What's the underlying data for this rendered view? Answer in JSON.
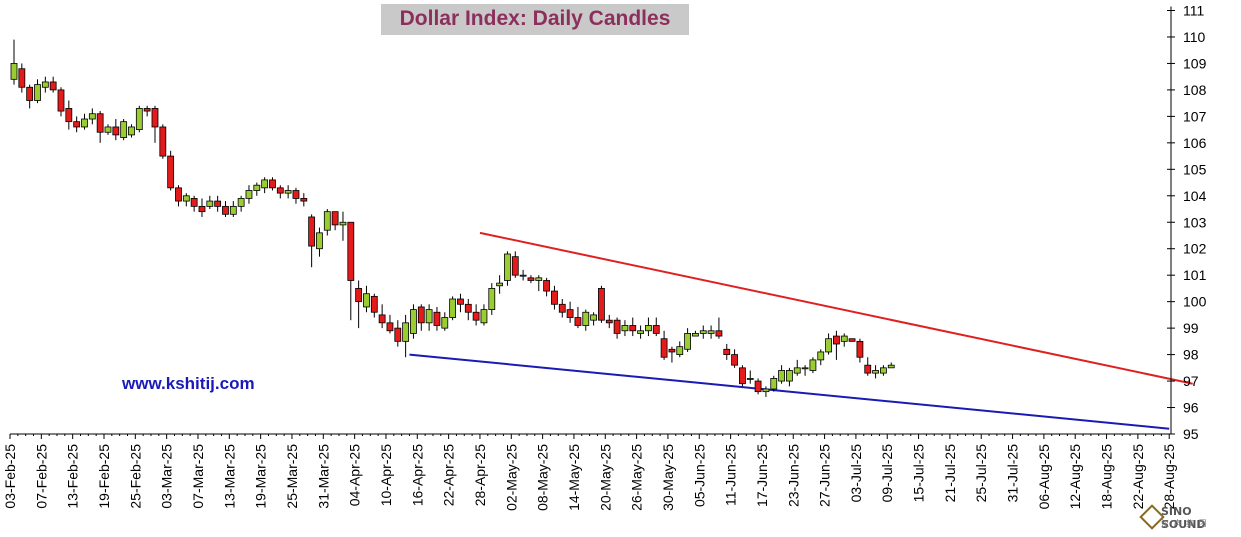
{
  "title": "Dollar Index: Daily Candles",
  "website": "www.kshitij.com",
  "logo_text": "SINO SOUND",
  "logo_subtext": "汉 声 集 团",
  "colors": {
    "up_candle": "#9acd32",
    "down_candle": "#e31b1b",
    "resistance_line": "#e02020",
    "support_line": "#1a1ab4",
    "title_bg": "#c9c9c9",
    "title_text": "#8c2f5c",
    "website_text": "#1a1ab8"
  },
  "chart_data": {
    "type": "candlestick",
    "title": "Dollar Index: Daily Candles",
    "ylim": [
      95,
      111
    ],
    "y_ticks": [
      95,
      96,
      97,
      98,
      99,
      100,
      101,
      102,
      103,
      104,
      105,
      106,
      107,
      108,
      109,
      110,
      111
    ],
    "y_axis_side": "right",
    "grid": false,
    "x_tick_labels": [
      "03-Feb-25",
      "07-Feb-25",
      "13-Feb-25",
      "19-Feb-25",
      "25-Feb-25",
      "03-Mar-25",
      "07-Mar-25",
      "13-Mar-25",
      "19-Mar-25",
      "25-Mar-25",
      "31-Mar-25",
      "04-Apr-25",
      "10-Apr-25",
      "16-Apr-25",
      "22-Apr-25",
      "28-Apr-25",
      "02-May-25",
      "08-May-25",
      "14-May-25",
      "20-May-25",
      "26-May-25",
      "30-May-25",
      "05-Jun-25",
      "11-Jun-25",
      "17-Jun-25",
      "23-Jun-25",
      "27-Jun-25",
      "03-Jul-25",
      "09-Jul-25",
      "15-Jul-25",
      "21-Jul-25",
      "25-Jul-25",
      "31-Jul-25",
      "06-Aug-25",
      "12-Aug-25",
      "18-Aug-25",
      "22-Aug-25",
      "28-Aug-25"
    ],
    "candles_ohlc": [
      [
        108.4,
        109.9,
        108.2,
        109.0
      ],
      [
        108.8,
        109.0,
        107.9,
        108.1
      ],
      [
        108.1,
        108.2,
        107.3,
        107.6
      ],
      [
        107.6,
        108.4,
        107.5,
        108.2
      ],
      [
        108.1,
        108.5,
        107.9,
        108.3
      ],
      [
        108.3,
        108.5,
        107.9,
        108.0
      ],
      [
        108.0,
        108.1,
        107.0,
        107.2
      ],
      [
        107.3,
        107.6,
        106.5,
        106.8
      ],
      [
        106.8,
        107.0,
        106.4,
        106.6
      ],
      [
        106.6,
        107.1,
        106.5,
        106.9
      ],
      [
        106.9,
        107.3,
        106.7,
        107.1
      ],
      [
        107.1,
        107.2,
        106.0,
        106.4
      ],
      [
        106.4,
        106.7,
        106.3,
        106.6
      ],
      [
        106.6,
        106.9,
        106.1,
        106.3
      ],
      [
        106.2,
        106.9,
        106.1,
        106.8
      ],
      [
        106.3,
        106.7,
        106.2,
        106.6
      ],
      [
        106.5,
        107.4,
        106.4,
        107.3
      ],
      [
        107.3,
        107.4,
        107.0,
        107.2
      ],
      [
        107.3,
        107.4,
        106.0,
        106.6
      ],
      [
        106.6,
        106.7,
        105.4,
        105.5
      ],
      [
        105.5,
        105.7,
        104.2,
        104.3
      ],
      [
        104.3,
        104.4,
        103.6,
        103.8
      ],
      [
        103.8,
        104.1,
        103.6,
        104.0
      ],
      [
        103.9,
        104.0,
        103.4,
        103.6
      ],
      [
        103.6,
        103.9,
        103.2,
        103.4
      ],
      [
        103.6,
        104.0,
        103.5,
        103.8
      ],
      [
        103.8,
        104.0,
        103.4,
        103.6
      ],
      [
        103.6,
        103.8,
        103.2,
        103.3
      ],
      [
        103.3,
        103.8,
        103.2,
        103.6
      ],
      [
        103.6,
        104.0,
        103.4,
        103.9
      ],
      [
        103.9,
        104.4,
        103.7,
        104.2
      ],
      [
        104.2,
        104.5,
        104.0,
        104.4
      ],
      [
        104.3,
        104.7,
        104.1,
        104.6
      ],
      [
        104.6,
        104.7,
        104.2,
        104.3
      ],
      [
        104.3,
        104.4,
        103.9,
        104.1
      ],
      [
        104.1,
        104.4,
        103.9,
        104.2
      ],
      [
        104.2,
        104.3,
        103.7,
        103.9
      ],
      [
        103.9,
        104.1,
        103.6,
        103.8
      ],
      [
        103.2,
        103.3,
        101.3,
        102.1
      ],
      [
        102.0,
        102.8,
        101.7,
        102.6
      ],
      [
        102.7,
        103.5,
        102.5,
        103.4
      ],
      [
        103.4,
        103.4,
        102.7,
        102.9
      ],
      [
        102.9,
        103.4,
        102.3,
        103.0
      ],
      [
        103.0,
        103.0,
        99.3,
        100.8
      ],
      [
        100.5,
        100.8,
        99.0,
        100.0
      ],
      [
        99.8,
        100.6,
        99.6,
        100.3
      ],
      [
        100.2,
        100.3,
        99.4,
        99.6
      ],
      [
        99.5,
        99.9,
        99.0,
        99.2
      ],
      [
        99.2,
        99.5,
        98.8,
        98.9
      ],
      [
        99.0,
        99.3,
        98.3,
        98.5
      ],
      [
        98.5,
        99.5,
        97.9,
        99.2
      ],
      [
        98.8,
        99.9,
        98.6,
        99.7
      ],
      [
        99.8,
        99.9,
        98.9,
        99.2
      ],
      [
        99.2,
        99.9,
        98.9,
        99.7
      ],
      [
        99.6,
        99.8,
        98.9,
        99.1
      ],
      [
        99.0,
        99.6,
        98.9,
        99.4
      ],
      [
        99.4,
        100.2,
        99.3,
        100.1
      ],
      [
        100.1,
        100.3,
        99.6,
        99.9
      ],
      [
        99.9,
        100.1,
        99.3,
        99.6
      ],
      [
        99.6,
        99.9,
        99.1,
        99.3
      ],
      [
        99.2,
        99.9,
        99.1,
        99.7
      ],
      [
        99.7,
        100.7,
        99.5,
        100.5
      ],
      [
        100.6,
        101.0,
        100.3,
        100.7
      ],
      [
        100.8,
        101.9,
        100.6,
        101.8
      ],
      [
        101.7,
        101.9,
        100.9,
        101.0
      ],
      [
        101.0,
        101.2,
        100.8,
        101.0
      ],
      [
        100.9,
        101.0,
        100.7,
        100.8
      ],
      [
        100.8,
        101.0,
        100.4,
        100.9
      ],
      [
        100.8,
        100.9,
        100.2,
        100.4
      ],
      [
        100.4,
        100.6,
        99.7,
        99.9
      ],
      [
        99.9,
        100.1,
        99.4,
        99.6
      ],
      [
        99.7,
        100.0,
        99.2,
        99.4
      ],
      [
        99.4,
        99.8,
        99.0,
        99.1
      ],
      [
        99.1,
        99.7,
        98.9,
        99.6
      ],
      [
        99.3,
        99.6,
        99.1,
        99.5
      ],
      [
        100.5,
        100.6,
        99.2,
        99.3
      ],
      [
        99.3,
        99.5,
        99.0,
        99.2
      ],
      [
        99.3,
        99.4,
        98.6,
        98.8
      ],
      [
        98.9,
        99.3,
        98.7,
        99.1
      ],
      [
        99.1,
        99.4,
        98.7,
        98.9
      ],
      [
        98.8,
        99.1,
        98.6,
        98.9
      ],
      [
        98.9,
        99.4,
        98.7,
        99.1
      ],
      [
        99.1,
        99.4,
        98.7,
        98.8
      ],
      [
        98.6,
        98.9,
        97.8,
        97.9
      ],
      [
        98.2,
        98.3,
        97.7,
        98.1
      ],
      [
        98.0,
        98.5,
        97.9,
        98.3
      ],
      [
        98.2,
        99.0,
        98.1,
        98.8
      ],
      [
        98.7,
        98.9,
        98.7,
        98.8
      ],
      [
        98.8,
        99.1,
        98.6,
        98.9
      ],
      [
        98.8,
        99.1,
        98.6,
        98.9
      ],
      [
        98.9,
        99.4,
        98.6,
        98.7
      ],
      [
        98.2,
        98.4,
        97.8,
        98.0
      ],
      [
        98.0,
        98.2,
        97.5,
        97.6
      ],
      [
        97.5,
        97.6,
        96.8,
        96.9
      ],
      [
        97.1,
        97.4,
        96.9,
        97.1
      ],
      [
        97.0,
        97.1,
        96.5,
        96.6
      ],
      [
        96.6,
        96.8,
        96.4,
        96.7
      ],
      [
        96.7,
        97.2,
        96.6,
        97.1
      ],
      [
        97.0,
        97.6,
        96.9,
        97.4
      ],
      [
        97.0,
        97.5,
        96.8,
        97.4
      ],
      [
        97.3,
        97.8,
        97.2,
        97.5
      ],
      [
        97.5,
        97.6,
        97.2,
        97.5
      ],
      [
        97.4,
        97.9,
        97.3,
        97.8
      ],
      [
        97.8,
        98.2,
        97.6,
        98.1
      ],
      [
        98.1,
        98.8,
        98.0,
        98.6
      ],
      [
        98.7,
        98.9,
        97.8,
        98.4
      ],
      [
        98.5,
        98.8,
        98.3,
        98.7
      ],
      [
        98.6,
        98.6,
        98.5,
        98.5
      ],
      [
        98.5,
        98.6,
        97.7,
        97.9
      ],
      [
        97.6,
        97.9,
        97.2,
        97.3
      ],
      [
        97.3,
        97.6,
        97.1,
        97.4
      ],
      [
        97.3,
        97.6,
        97.2,
        97.5
      ],
      [
        97.5,
        97.7,
        97.5,
        97.6
      ]
    ],
    "trendlines": [
      {
        "label": "resistance",
        "from": [
          "28-Apr-25",
          102.6
        ],
        "to": [
          "31-Aug-25",
          96.9
        ],
        "color": "#e02020"
      },
      {
        "label": "support",
        "from": [
          "15-Apr-25",
          98.0
        ],
        "to": [
          "28-Aug-25",
          95.2
        ],
        "color": "#1a1ab4"
      }
    ]
  }
}
